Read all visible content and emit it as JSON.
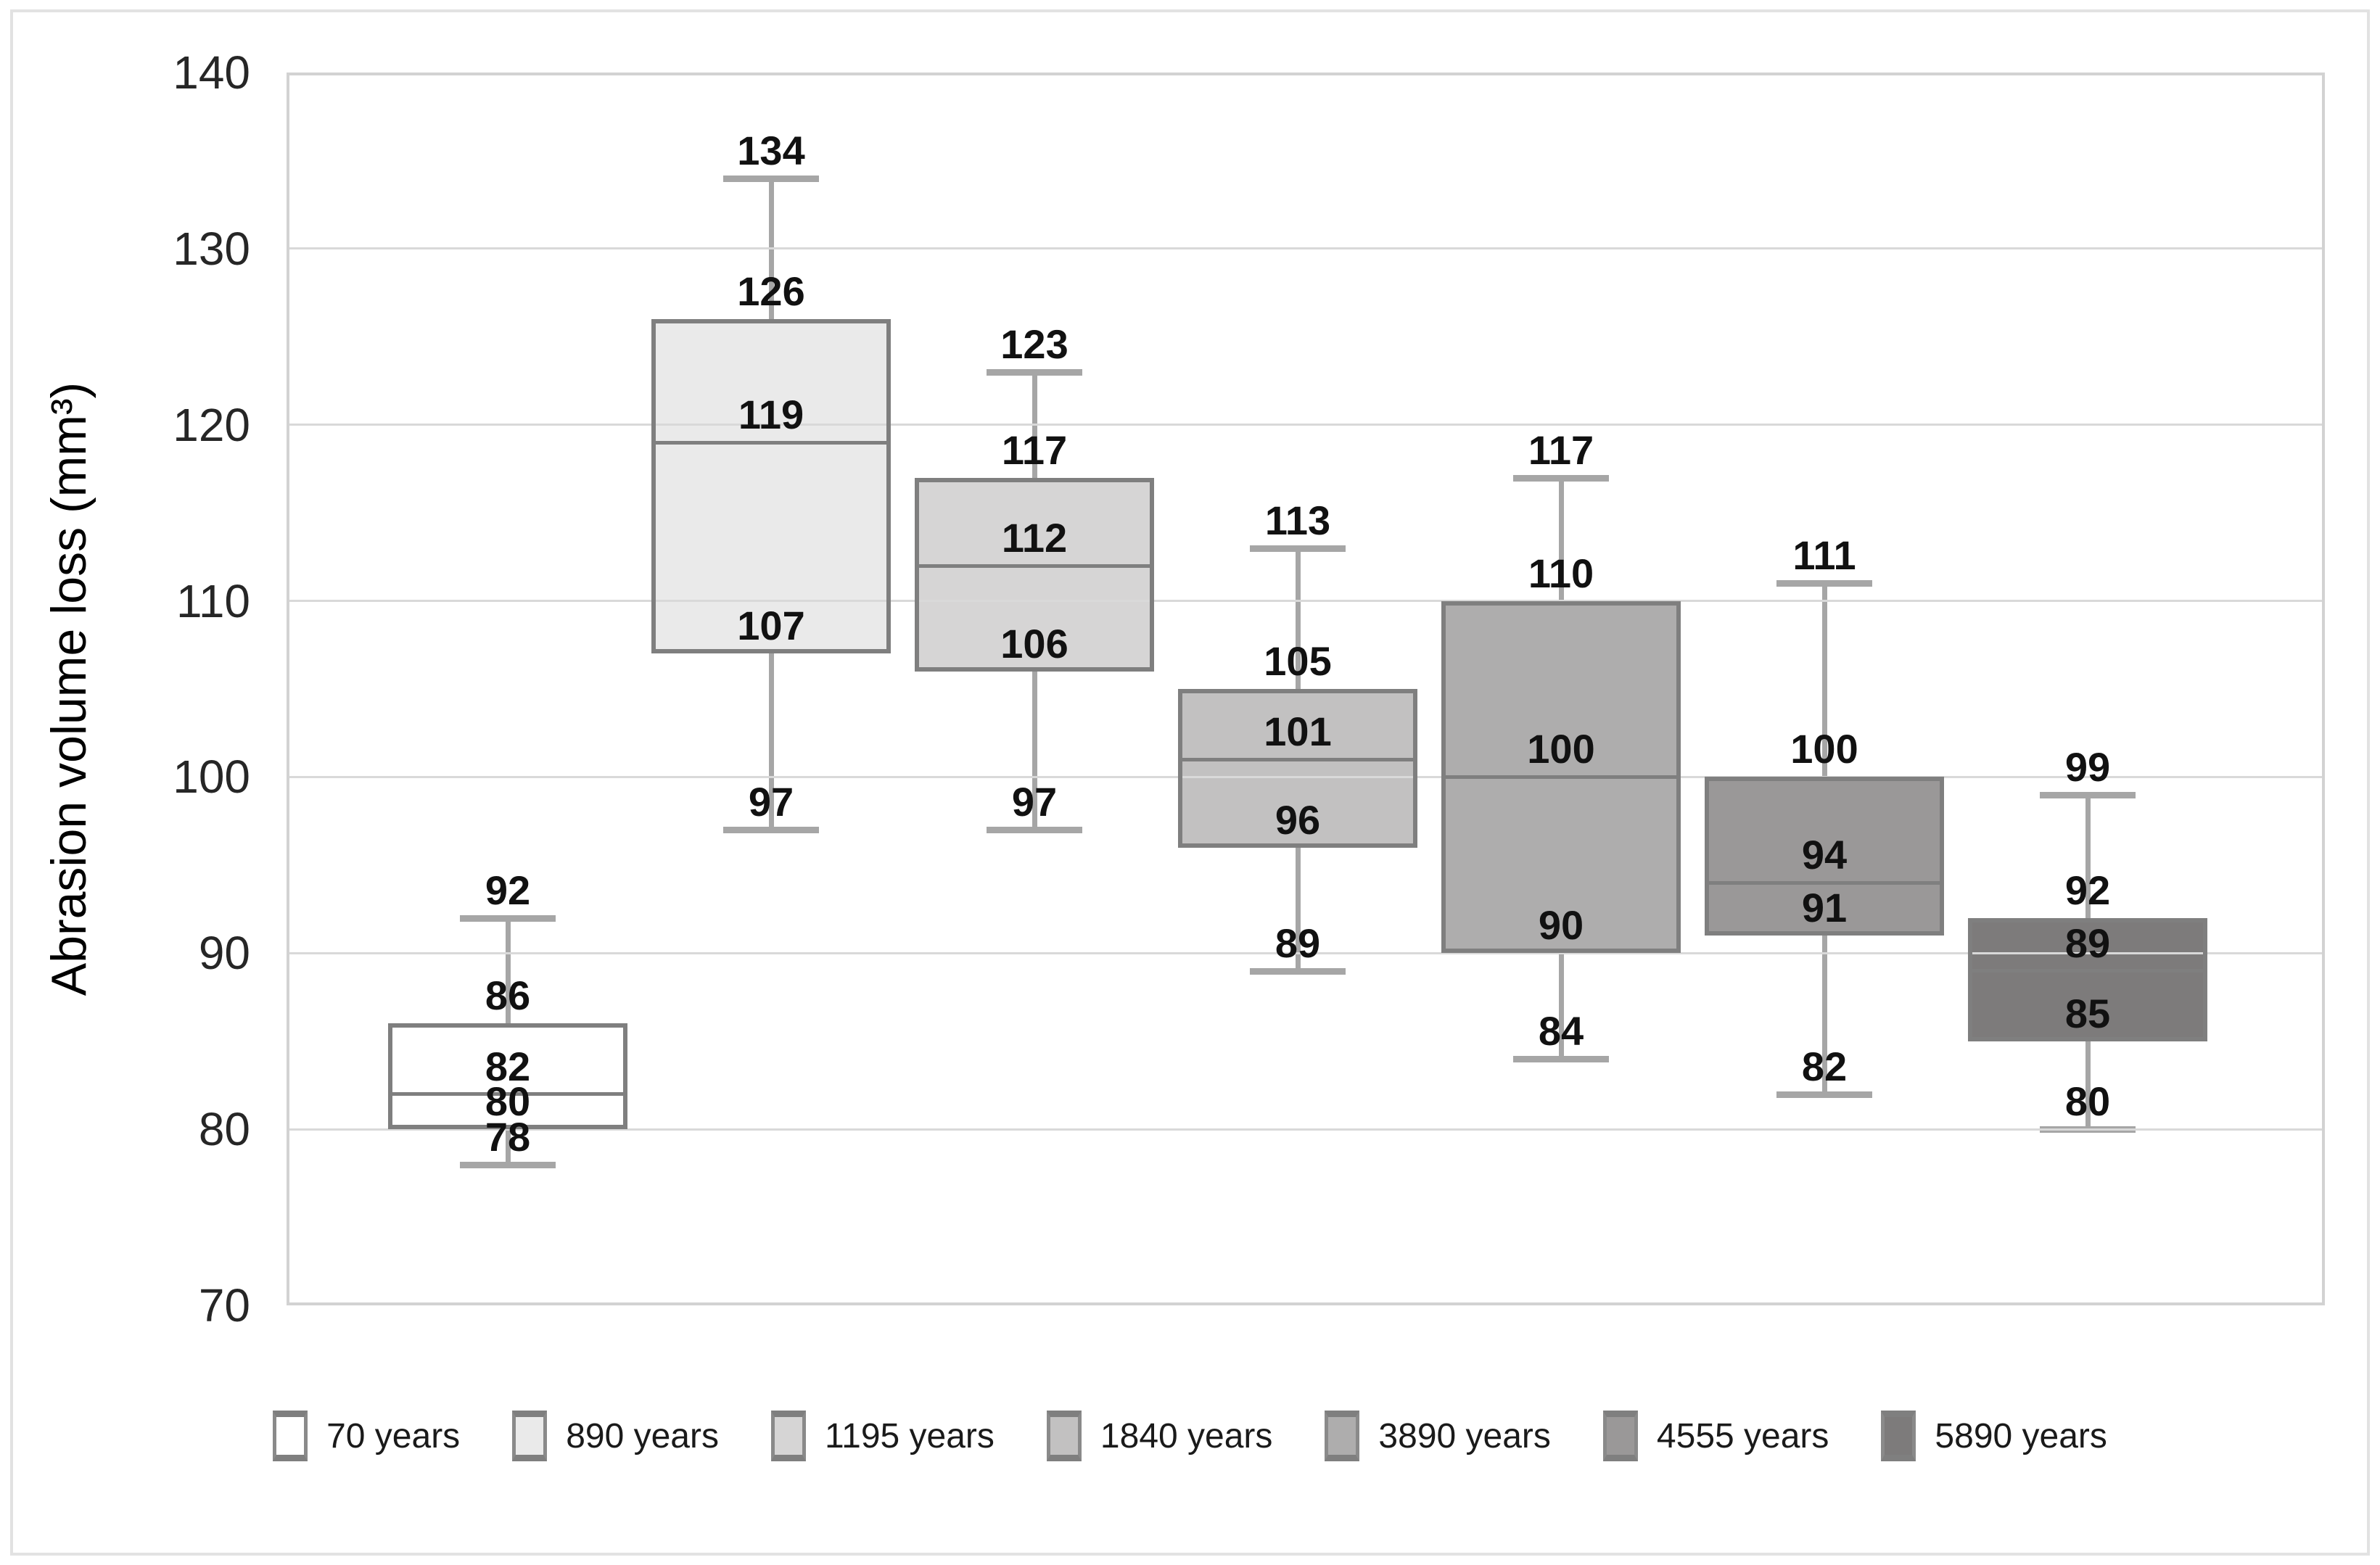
{
  "figure": {
    "y_axis_title": "Abrasion volume loss (mm³)"
  },
  "chart_data": {
    "type": "box",
    "title": "",
    "xlabel": "",
    "ylabel": "Abrasion volume loss (mm³)",
    "ylim": [
      70,
      140
    ],
    "ytick_step": 10,
    "yticks": [
      140,
      130,
      120,
      110,
      100,
      90,
      80,
      70
    ],
    "grid": "horizontal",
    "legend_position": "bottom",
    "series": [
      {
        "label": "70 years",
        "fill": "#ffffff",
        "min": 78,
        "q1": 80,
        "median": 82,
        "q3": 86,
        "max": 92
      },
      {
        "label": "890 years",
        "fill": "#eaeaea",
        "min": 97,
        "q1": 107,
        "median": 119,
        "q3": 126,
        "max": 134
      },
      {
        "label": "1195 years",
        "fill": "#d6d5d5",
        "min": 97,
        "q1": 106,
        "median": 112,
        "q3": 117,
        "max": 123
      },
      {
        "label": "1840 years",
        "fill": "#c2c1c1",
        "min": 89,
        "q1": 96,
        "median": 101,
        "q3": 105,
        "max": 113
      },
      {
        "label": "3890 years",
        "fill": "#aeadad",
        "min": 84,
        "q1": 90,
        "median": 100,
        "q3": 110,
        "max": 117
      },
      {
        "label": "4555 years",
        "fill": "#9a9898",
        "min": 82,
        "q1": 91,
        "median": 94,
        "q3": 100,
        "max": 111
      },
      {
        "label": "5890 years",
        "fill": "#7d7b7b",
        "min": 80,
        "q1": 85,
        "median": 89,
        "q3": 92,
        "max": 99
      }
    ],
    "colors": {
      "box_border": "#7f7f7f",
      "median": "#7f7f7f",
      "whisker": "#a6a6a6",
      "gridline": "#d9d9d9",
      "plot_border": "#d2d2d2",
      "label_text": "#111111",
      "tick_text": "#262626",
      "figure_border": "#e2e2e2"
    }
  }
}
